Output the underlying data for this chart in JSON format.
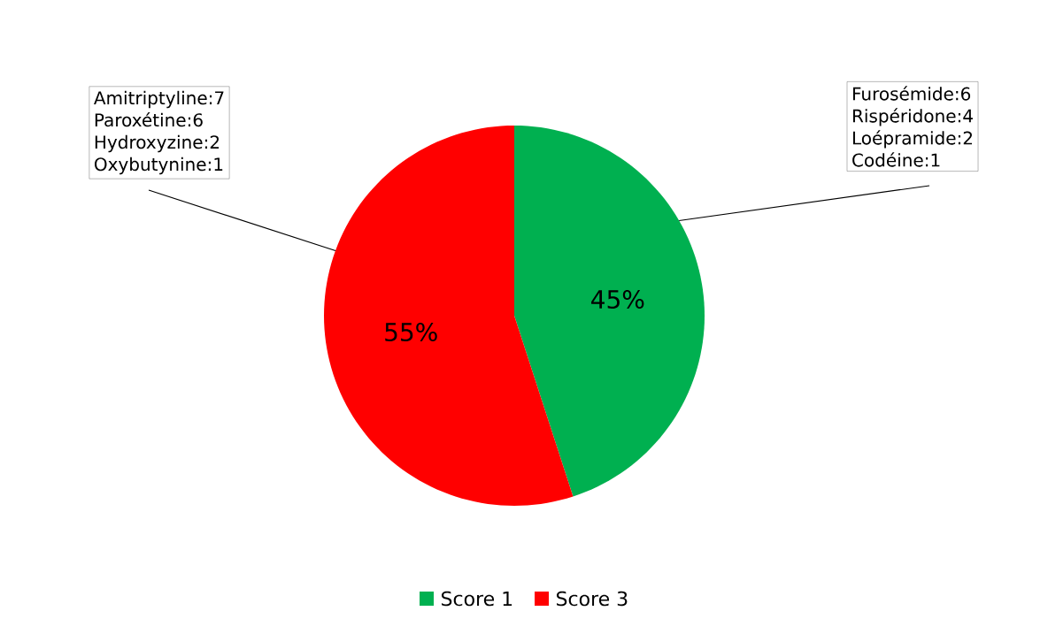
{
  "chart_data": {
    "type": "pie",
    "categories": [
      "Score 1",
      "Score 3"
    ],
    "values": [
      45,
      55
    ],
    "colors": [
      "#00b050",
      "#ff0000"
    ],
    "value_labels": [
      "45%",
      "55%"
    ],
    "legend": "bottom",
    "annotations": [
      "Amitriptyline:7",
      "Paroxétine:6",
      "Hydroxyzine:2",
      "Oxybutynine:1",
      "Furosémide:6",
      "Rispéridone:4",
      "Loépramide:2",
      "Codéine:1"
    ]
  }
}
